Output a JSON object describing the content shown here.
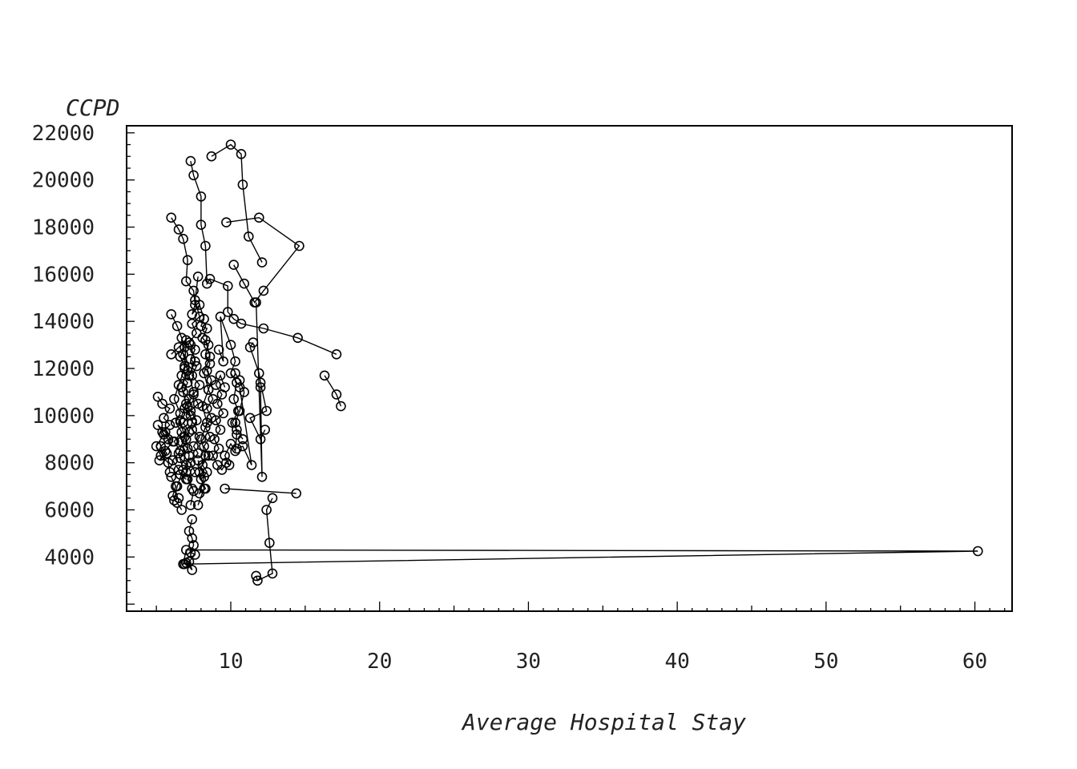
{
  "chart_data": {
    "type": "scatter",
    "connected": true,
    "xlabel": "Average Hospital Stay",
    "ylabel": "CCPD",
    "xlim": [
      3,
      62.5
    ],
    "ylim": [
      1700,
      22300
    ],
    "x_ticks": [
      10,
      20,
      30,
      40,
      50,
      60
    ],
    "x_tick_labels": [
      "10",
      "20",
      "30",
      "40",
      "50",
      "60"
    ],
    "y_ticks": [
      4000,
      6000,
      8000,
      10000,
      12000,
      14000,
      16000,
      18000,
      20000,
      22000
    ],
    "y_tick_labels": [
      "4000",
      "6000",
      "8000",
      "10000",
      "12000",
      "14000",
      "16000",
      "18000",
      "20000",
      "22000"
    ],
    "grid": false,
    "legend": "none",
    "marker": "open-circle",
    "series": [
      {
        "points": [
          [
            8.7,
            21000
          ],
          [
            10.0,
            21500
          ],
          [
            10.7,
            21100
          ],
          [
            10.8,
            19800
          ],
          [
            11.2,
            17600
          ],
          [
            12.1,
            16500
          ]
        ]
      },
      {
        "points": [
          [
            9.7,
            18200
          ],
          [
            11.9,
            18400
          ],
          [
            14.6,
            17200
          ],
          [
            12.2,
            15300
          ],
          [
            11.6,
            14800
          ],
          [
            10.9,
            15600
          ],
          [
            10.2,
            16400
          ]
        ]
      },
      {
        "points": [
          [
            7.3,
            20800
          ],
          [
            7.5,
            20200
          ],
          [
            8.0,
            19300
          ],
          [
            8.0,
            18100
          ],
          [
            8.3,
            17200
          ],
          [
            8.4,
            15600
          ],
          [
            8.6,
            15800
          ],
          [
            9.8,
            15500
          ],
          [
            9.8,
            14400
          ],
          [
            10.2,
            14100
          ],
          [
            10.7,
            13900
          ],
          [
            12.2,
            13700
          ],
          [
            14.5,
            13300
          ],
          [
            17.1,
            12600
          ]
        ]
      },
      {
        "points": [
          [
            16.3,
            11700
          ],
          [
            17.1,
            10900
          ],
          [
            17.4,
            10400
          ]
        ]
      },
      {
        "points": [
          [
            6.0,
            18400
          ],
          [
            6.5,
            17900
          ],
          [
            6.8,
            17500
          ],
          [
            7.1,
            16600
          ],
          [
            7.0,
            15700
          ],
          [
            7.5,
            15300
          ],
          [
            7.6,
            14700
          ],
          [
            7.4,
            14300
          ],
          [
            7.9,
            14700
          ],
          [
            8.2,
            14100
          ],
          [
            8.0,
            13800
          ],
          [
            8.4,
            13700
          ],
          [
            8.1,
            13300
          ],
          [
            8.5,
            13000
          ],
          [
            8.3,
            12600
          ],
          [
            8.6,
            12200
          ],
          [
            8.4,
            11900
          ],
          [
            8.7,
            11500
          ],
          [
            8.5,
            11100
          ],
          [
            8.8,
            10700
          ],
          [
            8.4,
            10300
          ],
          [
            8.7,
            9900
          ],
          [
            8.3,
            9500
          ],
          [
            8.6,
            9100
          ],
          [
            8.2,
            8700
          ],
          [
            8.5,
            8300
          ],
          [
            8.1,
            7900
          ],
          [
            8.4,
            7600
          ],
          [
            8.0,
            7300
          ],
          [
            8.3,
            6900
          ],
          [
            7.9,
            6700
          ],
          [
            8.2,
            7400
          ],
          [
            7.8,
            8100
          ]
        ]
      },
      {
        "points": [
          [
            7.8,
            15900
          ],
          [
            7.6,
            14900
          ],
          [
            7.9,
            14200
          ],
          [
            7.4,
            13900
          ],
          [
            7.7,
            13500
          ],
          [
            7.2,
            13100
          ],
          [
            7.6,
            12800
          ],
          [
            7.3,
            12400
          ],
          [
            7.7,
            12100
          ],
          [
            7.4,
            11700
          ],
          [
            7.9,
            11300
          ],
          [
            7.5,
            10900
          ],
          [
            7.8,
            10500
          ],
          [
            7.3,
            10200
          ],
          [
            7.7,
            9800
          ],
          [
            7.4,
            9400
          ],
          [
            7.9,
            9100
          ],
          [
            7.5,
            8700
          ],
          [
            7.8,
            8400
          ],
          [
            7.3,
            8000
          ],
          [
            7.6,
            7600
          ],
          [
            7.1,
            7300
          ],
          [
            7.4,
            6900
          ]
        ]
      },
      {
        "points": [
          [
            6.0,
            14300
          ],
          [
            6.4,
            13800
          ],
          [
            6.7,
            13300
          ],
          [
            6.9,
            12900
          ],
          [
            6.6,
            12500
          ],
          [
            6.9,
            12100
          ],
          [
            6.7,
            11700
          ],
          [
            7.1,
            11400
          ],
          [
            6.8,
            11000
          ],
          [
            7.2,
            10700
          ],
          [
            6.9,
            10300
          ],
          [
            7.3,
            10000
          ],
          [
            6.8,
            9700
          ],
          [
            7.2,
            9300
          ],
          [
            6.7,
            8900
          ],
          [
            7.1,
            8600
          ],
          [
            6.6,
            8200
          ],
          [
            7.0,
            7900
          ],
          [
            6.6,
            7500
          ],
          [
            7.0,
            7300
          ]
        ]
      },
      {
        "points": [
          [
            6.0,
            12600
          ],
          [
            6.5,
            12900
          ],
          [
            7.0,
            13200
          ],
          [
            6.9,
            12000
          ],
          [
            6.5,
            11300
          ],
          [
            6.2,
            10700
          ],
          [
            6.6,
            10100
          ],
          [
            6.3,
            9700
          ],
          [
            6.7,
            9300
          ],
          [
            6.2,
            8900
          ],
          [
            6.6,
            8500
          ],
          [
            6.1,
            8100
          ],
          [
            6.5,
            7700
          ],
          [
            6.0,
            7400
          ],
          [
            6.3,
            7000
          ],
          [
            6.1,
            6600
          ],
          [
            6.4,
            6300
          ],
          [
            6.7,
            6000
          ]
        ]
      },
      {
        "points": [
          [
            5.1,
            10800
          ],
          [
            5.4,
            10500
          ],
          [
            5.9,
            10300
          ],
          [
            5.5,
            9900
          ],
          [
            5.9,
            9600
          ],
          [
            5.4,
            9300
          ],
          [
            5.8,
            9000
          ],
          [
            5.3,
            8700
          ],
          [
            5.7,
            8400
          ],
          [
            5.2,
            8100
          ],
          [
            5.6,
            8500
          ],
          [
            6.1,
            8900
          ],
          [
            5.6,
            9300
          ],
          [
            5.1,
            9600
          ],
          [
            5.5,
            9200
          ],
          [
            5.0,
            8700
          ],
          [
            5.3,
            8300
          ],
          [
            5.8,
            8000
          ],
          [
            5.9,
            7600
          ]
        ]
      },
      {
        "points": [
          [
            9.6,
            11200
          ],
          [
            9.3,
            11700
          ],
          [
            9.0,
            11300
          ],
          [
            9.4,
            10900
          ],
          [
            9.1,
            10500
          ],
          [
            9.5,
            10100
          ],
          [
            9.0,
            9800
          ],
          [
            9.3,
            9400
          ],
          [
            8.9,
            9000
          ],
          [
            9.2,
            8600
          ],
          [
            8.8,
            8300
          ],
          [
            9.1,
            7900
          ],
          [
            9.4,
            7700
          ],
          [
            9.7,
            8000
          ],
          [
            9.9,
            7900
          ],
          [
            9.6,
            8300
          ],
          [
            10.0,
            8800
          ],
          [
            10.3,
            8500
          ],
          [
            10.4,
            9200
          ],
          [
            10.3,
            9700
          ],
          [
            10.6,
            10200
          ],
          [
            10.9,
            11000
          ],
          [
            10.6,
            11500
          ],
          [
            10.3,
            11800
          ]
        ]
      },
      {
        "points": [
          [
            9.2,
            12800
          ],
          [
            9.5,
            12300
          ],
          [
            9.3,
            14200
          ],
          [
            10.0,
            13000
          ],
          [
            10.3,
            12300
          ],
          [
            10.0,
            11800
          ],
          [
            10.4,
            11400
          ],
          [
            10.2,
            10700
          ],
          [
            10.5,
            10200
          ],
          [
            10.1,
            9700
          ],
          [
            10.4,
            9400
          ],
          [
            10.8,
            9000
          ]
        ]
      },
      {
        "points": [
          [
            11.5,
            13100
          ],
          [
            11.3,
            12900
          ],
          [
            11.9,
            11800
          ],
          [
            12.0,
            11400
          ],
          [
            12.4,
            10200
          ],
          [
            11.3,
            9900
          ],
          [
            12.0,
            9000
          ],
          [
            12.3,
            9400
          ]
        ]
      },
      {
        "points": [
          [
            10.6,
            11200
          ],
          [
            11.4,
            7900
          ],
          [
            10.8,
            8700
          ],
          [
            10.4,
            8600
          ]
        ]
      },
      {
        "points": [
          [
            11.7,
            14800
          ],
          [
            12.1,
            7400
          ],
          [
            12.0,
            11200
          ]
        ]
      },
      {
        "points": [
          [
            9.6,
            6900
          ],
          [
            14.4,
            6700
          ]
        ]
      },
      {
        "points": [
          [
            7.4,
            5600
          ],
          [
            7.2,
            5100
          ],
          [
            7.4,
            4800
          ],
          [
            7.5,
            4500
          ],
          [
            7.3,
            4200
          ],
          [
            7.6,
            4100
          ],
          [
            7.2,
            3800
          ],
          [
            7.4,
            3450
          ],
          [
            7.0,
            3750
          ],
          [
            6.8,
            3700
          ],
          [
            7.0,
            4300
          ],
          [
            60.2,
            4250
          ],
          [
            6.9,
            3700
          ]
        ]
      },
      {
        "points": [
          [
            12.8,
            6500
          ],
          [
            12.4,
            6000
          ],
          [
            12.6,
            4600
          ],
          [
            12.8,
            3300
          ],
          [
            11.8,
            3000
          ],
          [
            11.7,
            3200
          ]
        ]
      },
      {
        "points": [
          [
            7.3,
            6200
          ],
          [
            7.5,
            6800
          ],
          [
            7.0,
            7600
          ],
          [
            7.2,
            8300
          ],
          [
            7.0,
            9000
          ],
          [
            7.4,
            9700
          ],
          [
            7.1,
            10400
          ],
          [
            7.5,
            11000
          ],
          [
            7.2,
            11700
          ],
          [
            7.6,
            12300
          ],
          [
            7.3,
            13000
          ]
        ]
      },
      {
        "points": [
          [
            7.8,
            6200
          ],
          [
            8.2,
            6900
          ],
          [
            7.9,
            7600
          ],
          [
            8.3,
            8300
          ],
          [
            8.0,
            9000
          ],
          [
            8.4,
            9700
          ],
          [
            8.1,
            10400
          ],
          [
            8.5,
            11100
          ],
          [
            8.2,
            11800
          ],
          [
            8.6,
            12500
          ],
          [
            8.3,
            13200
          ]
        ]
      },
      {
        "points": [
          [
            6.5,
            6500
          ],
          [
            6.2,
            6400
          ],
          [
            6.4,
            7000
          ],
          [
            6.8,
            7700
          ],
          [
            6.5,
            8400
          ],
          [
            6.9,
            9100
          ],
          [
            6.6,
            9800
          ],
          [
            7.0,
            10500
          ],
          [
            6.7,
            11200
          ],
          [
            7.1,
            11900
          ],
          [
            6.8,
            12600
          ]
        ]
      }
    ]
  }
}
